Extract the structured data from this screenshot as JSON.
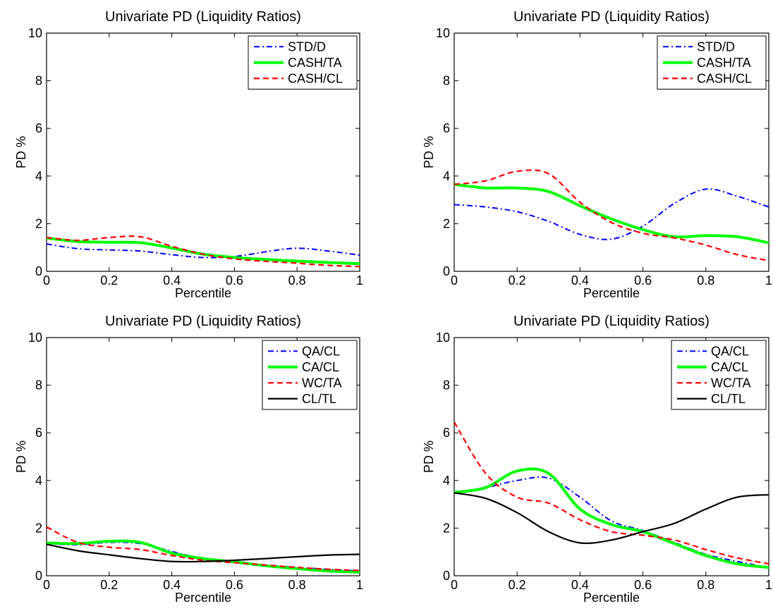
{
  "chart_data": [
    {
      "type": "line",
      "title": "Univariate PD (Liquidity Ratios)",
      "xlabel": "Percentile",
      "ylabel": "PD %",
      "xlim": [
        0,
        1
      ],
      "ylim": [
        0,
        10
      ],
      "xticks": [
        "0",
        "0.2",
        "0.4",
        "0.6",
        "0.8",
        "1"
      ],
      "yticks": [
        "0",
        "2",
        "4",
        "6",
        "8",
        "10"
      ],
      "grid": false,
      "legend_position": "top-right",
      "x": [
        0,
        0.1,
        0.2,
        0.3,
        0.4,
        0.5,
        0.6,
        0.7,
        0.8,
        0.9,
        1.0
      ],
      "series": [
        {
          "name": "STD/D",
          "color": "#0000ff",
          "style": "dashdot",
          "values": [
            1.15,
            0.95,
            0.9,
            0.85,
            0.7,
            0.58,
            0.62,
            0.82,
            0.97,
            0.85,
            0.68
          ]
        },
        {
          "name": "CASH/TA",
          "color": "#00ff00",
          "style": "solid-thick",
          "values": [
            1.4,
            1.25,
            1.22,
            1.2,
            0.98,
            0.72,
            0.58,
            0.5,
            0.43,
            0.37,
            0.32
          ]
        },
        {
          "name": "CASH/CL",
          "color": "#ff0000",
          "style": "dashed",
          "values": [
            1.42,
            1.3,
            1.42,
            1.45,
            1.05,
            0.72,
            0.52,
            0.42,
            0.34,
            0.25,
            0.2
          ]
        }
      ]
    },
    {
      "type": "line",
      "title": "Univariate PD (Liquidity Ratios)",
      "xlabel": "Percentile",
      "ylabel": "PD %",
      "xlim": [
        0,
        1
      ],
      "ylim": [
        0,
        10
      ],
      "xticks": [
        "0",
        "0.2",
        "0.4",
        "0.6",
        "0.8",
        "1"
      ],
      "yticks": [
        "0",
        "2",
        "4",
        "6",
        "8",
        "10"
      ],
      "grid": false,
      "legend_position": "top-right",
      "x": [
        0,
        0.1,
        0.2,
        0.3,
        0.4,
        0.5,
        0.6,
        0.7,
        0.8,
        0.9,
        1.0
      ],
      "series": [
        {
          "name": "STD/D",
          "color": "#0000ff",
          "style": "dashdot",
          "values": [
            2.8,
            2.7,
            2.5,
            2.1,
            1.55,
            1.35,
            1.9,
            2.85,
            3.45,
            3.15,
            2.7
          ]
        },
        {
          "name": "CASH/TA",
          "color": "#00ff00",
          "style": "solid-thick",
          "values": [
            3.65,
            3.5,
            3.5,
            3.35,
            2.75,
            2.2,
            1.75,
            1.45,
            1.5,
            1.45,
            1.2
          ]
        },
        {
          "name": "CASH/CL",
          "color": "#ff0000",
          "style": "dashed",
          "values": [
            3.65,
            3.8,
            4.2,
            4.1,
            2.9,
            2.05,
            1.6,
            1.4,
            1.1,
            0.7,
            0.45
          ]
        }
      ]
    },
    {
      "type": "line",
      "title": "Univariate PD (Liquidity Ratios)",
      "xlabel": "Percentile",
      "ylabel": "PD %",
      "xlim": [
        0,
        1
      ],
      "ylim": [
        0,
        10
      ],
      "xticks": [
        "0",
        "0.2",
        "0.4",
        "0.6",
        "0.8",
        "1"
      ],
      "yticks": [
        "0",
        "2",
        "4",
        "6",
        "8",
        "10"
      ],
      "grid": false,
      "legend_position": "top-right",
      "x": [
        0,
        0.1,
        0.2,
        0.3,
        0.4,
        0.5,
        0.6,
        0.7,
        0.8,
        0.9,
        1.0
      ],
      "series": [
        {
          "name": "QA/CL",
          "color": "#0000ff",
          "style": "dashdot",
          "values": [
            1.35,
            1.3,
            1.4,
            1.35,
            1.02,
            0.72,
            0.58,
            0.45,
            0.35,
            0.27,
            0.2
          ]
        },
        {
          "name": "CA/CL",
          "color": "#00ff00",
          "style": "solid-thick",
          "values": [
            1.38,
            1.35,
            1.45,
            1.4,
            0.95,
            0.72,
            0.58,
            0.42,
            0.3,
            0.2,
            0.15
          ]
        },
        {
          "name": "WC/TA",
          "color": "#ff0000",
          "style": "dashed",
          "values": [
            2.05,
            1.4,
            1.2,
            1.1,
            0.85,
            0.65,
            0.55,
            0.45,
            0.35,
            0.27,
            0.22
          ]
        },
        {
          "name": "CL/TL",
          "color": "#000000",
          "style": "solid",
          "values": [
            1.32,
            1.05,
            0.88,
            0.72,
            0.6,
            0.6,
            0.65,
            0.72,
            0.8,
            0.87,
            0.9
          ]
        }
      ]
    },
    {
      "type": "line",
      "title": "Univariate PD (Liquidity Ratios)",
      "xlabel": "Percentile",
      "ylabel": "PD %",
      "xlim": [
        0,
        1
      ],
      "ylim": [
        0,
        10
      ],
      "xticks": [
        "0",
        "0.2",
        "0.4",
        "0.6",
        "0.8",
        "1"
      ],
      "yticks": [
        "0",
        "2",
        "4",
        "6",
        "8",
        "10"
      ],
      "grid": false,
      "legend_position": "top-right",
      "x": [
        0,
        0.1,
        0.2,
        0.3,
        0.4,
        0.5,
        0.6,
        0.7,
        0.8,
        0.9,
        1.0
      ],
      "series": [
        {
          "name": "QA/CL",
          "color": "#0000ff",
          "style": "dashdot",
          "values": [
            3.5,
            3.7,
            4.0,
            4.1,
            3.3,
            2.3,
            1.9,
            1.4,
            0.9,
            0.6,
            0.35
          ]
        },
        {
          "name": "CA/CL",
          "color": "#00ff00",
          "style": "solid-thick",
          "values": [
            3.5,
            3.7,
            4.4,
            4.3,
            2.8,
            2.15,
            1.85,
            1.35,
            0.85,
            0.5,
            0.35
          ]
        },
        {
          "name": "WC/TA",
          "color": "#ff0000",
          "style": "dashed",
          "values": [
            6.45,
            4.3,
            3.3,
            3.05,
            2.35,
            1.85,
            1.7,
            1.5,
            1.1,
            0.75,
            0.5
          ]
        },
        {
          "name": "CL/TL",
          "color": "#000000",
          "style": "solid",
          "values": [
            3.48,
            3.25,
            2.65,
            1.85,
            1.38,
            1.5,
            1.85,
            2.2,
            2.8,
            3.3,
            3.4
          ]
        }
      ]
    }
  ]
}
